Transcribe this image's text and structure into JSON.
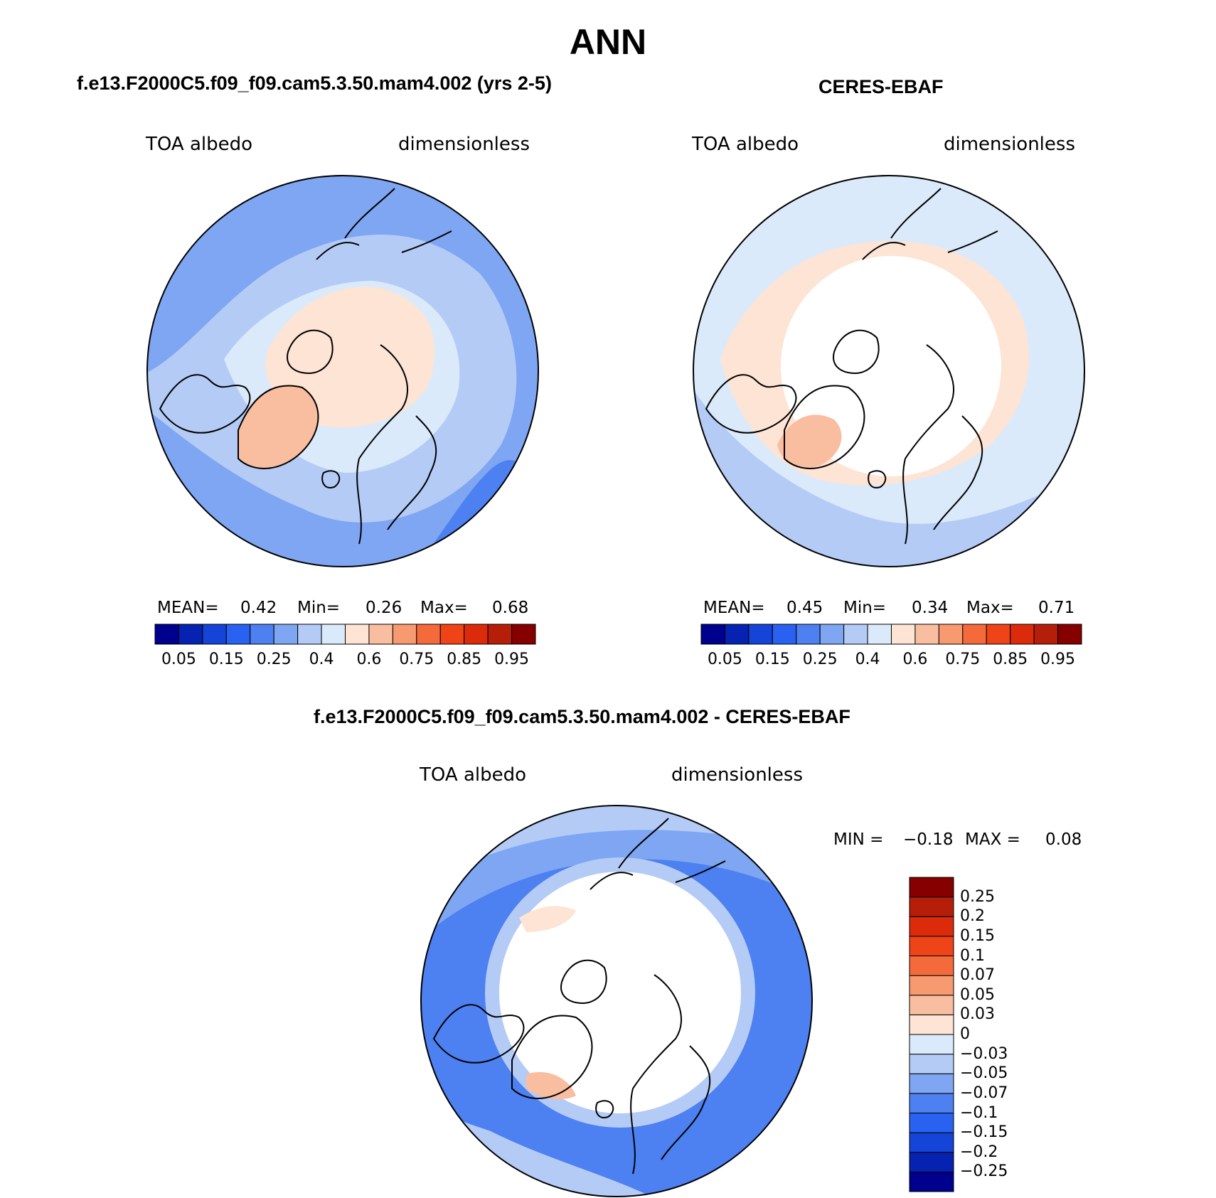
{
  "title": "ANN",
  "panels": [
    {
      "title": "f.e13.F2000C5.f09_f09.cam5.3.50.mam4.002 (yrs 2-5)",
      "variable": "TOA albedo",
      "units": "dimensionless",
      "stats": {
        "mean_label": "MEAN=",
        "mean": "0.42",
        "min_label": "Min=",
        "min": "0.26",
        "max_label": "Max=",
        "max": "0.68"
      }
    },
    {
      "title": "CERES-EBAF",
      "variable": "TOA albedo",
      "units": "dimensionless",
      "stats": {
        "mean_label": "MEAN=",
        "mean": "0.45",
        "min_label": "Min=",
        "min": "0.34",
        "max_label": "Max=",
        "max": "0.71"
      }
    },
    {
      "title": "f.e13.F2000C5.f09_f09.cam5.3.50.mam4.002 - CERES-EBAF",
      "variable": "TOA albedo",
      "units": "dimensionless",
      "stats": {
        "min_label": "MIN =",
        "min": "−0.18",
        "max_label": "MAX =",
        "max": "0.08"
      }
    }
  ],
  "colorbar_abs": {
    "colors": [
      "#00008f",
      "#0522b0",
      "#1444d8",
      "#2962f0",
      "#4d80f0",
      "#7fa6f2",
      "#b4cbf6",
      "#daeafb",
      "#fde4d4",
      "#f9bd9f",
      "#f79a70",
      "#f56a3b",
      "#ee4417",
      "#db2b0b",
      "#b51f09",
      "#860000"
    ],
    "labels": [
      "0.05",
      "0.15",
      "0.25",
      "0.4",
      "0.6",
      "0.75",
      "0.85",
      "0.95"
    ]
  },
  "colorbar_diff": {
    "colors": [
      "#00008f",
      "#0522b0",
      "#1444d8",
      "#2962f0",
      "#4d80f0",
      "#7fa6f2",
      "#b4cbf6",
      "#daeafb",
      "#fde4d4",
      "#f9bd9f",
      "#f79a70",
      "#f56a3b",
      "#ee4417",
      "#db2b0b",
      "#b51f09",
      "#860000"
    ],
    "labels": [
      "−0.25",
      "−0.2",
      "−0.15",
      "−0.1",
      "−0.07",
      "−0.05",
      "−0.03",
      "0",
      "0.03",
      "0.05",
      "0.07",
      "0.1",
      "0.15",
      "0.2",
      "0.25"
    ]
  },
  "map_colors": {
    "blue_dark": "#4d80f0",
    "blue_mid": "#7fa6f2",
    "blue_light": "#b4cbf6",
    "blue_pale": "#daeafb",
    "peach": "#fde4d4",
    "salmon": "#f9bd9f",
    "blank": "#ffffff",
    "coast": "#000000"
  }
}
